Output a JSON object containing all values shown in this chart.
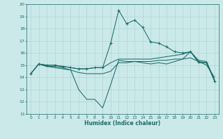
{
  "xlabel": "Humidex (Indice chaleur)",
  "xlim": [
    -0.5,
    23.5
  ],
  "ylim": [
    11,
    20
  ],
  "xticks": [
    0,
    1,
    2,
    3,
    4,
    5,
    6,
    7,
    8,
    9,
    10,
    11,
    12,
    13,
    14,
    15,
    16,
    17,
    18,
    19,
    20,
    21,
    22,
    23
  ],
  "yticks": [
    11,
    12,
    13,
    14,
    15,
    16,
    17,
    18,
    19,
    20
  ],
  "background_color": "#cce9ea",
  "grid_color": "#aed4d5",
  "line_color": "#1c6b6a",
  "series": [
    {
      "x": [
        0,
        1,
        2,
        3,
        4,
        5,
        6,
        7,
        8,
        9,
        10,
        11,
        12,
        13,
        14,
        15,
        16,
        17,
        18,
        19,
        20,
        21,
        22,
        23
      ],
      "y": [
        14.3,
        15.1,
        14.9,
        14.9,
        14.8,
        14.6,
        13.0,
        12.2,
        12.2,
        11.5,
        13.4,
        15.4,
        15.3,
        15.3,
        15.2,
        15.1,
        15.2,
        15.1,
        15.3,
        15.5,
        16.1,
        15.2,
        15.2,
        13.7
      ],
      "marker": false
    },
    {
      "x": [
        0,
        1,
        2,
        3,
        4,
        5,
        6,
        7,
        8,
        9,
        10,
        11,
        12,
        13,
        14,
        15,
        16,
        17,
        18,
        19,
        20,
        21,
        22,
        23
      ],
      "y": [
        14.3,
        15.1,
        15.0,
        15.0,
        14.9,
        14.8,
        14.7,
        14.7,
        14.8,
        14.8,
        15.2,
        15.5,
        15.5,
        15.5,
        15.5,
        15.5,
        15.6,
        15.7,
        15.8,
        15.9,
        16.1,
        15.4,
        15.3,
        13.8
      ],
      "marker": false
    },
    {
      "x": [
        0,
        1,
        2,
        3,
        4,
        5,
        6,
        7,
        8,
        9,
        10,
        11,
        12,
        13,
        14,
        15,
        16,
        17,
        18,
        19,
        20,
        21,
        22,
        23
      ],
      "y": [
        14.3,
        15.1,
        15.0,
        15.0,
        14.9,
        14.8,
        14.7,
        14.7,
        14.8,
        14.8,
        16.8,
        19.5,
        18.4,
        18.7,
        18.1,
        16.9,
        16.8,
        16.5,
        16.1,
        16.0,
        16.1,
        15.3,
        15.2,
        13.7
      ],
      "marker": true
    },
    {
      "x": [
        0,
        1,
        2,
        3,
        4,
        5,
        6,
        7,
        8,
        9,
        10,
        11,
        12,
        13,
        14,
        15,
        16,
        17,
        18,
        19,
        20,
        21,
        22,
        23
      ],
      "y": [
        14.3,
        15.1,
        14.9,
        14.8,
        14.7,
        14.6,
        14.4,
        14.3,
        14.3,
        14.3,
        14.5,
        15.2,
        15.2,
        15.3,
        15.3,
        15.3,
        15.4,
        15.4,
        15.5,
        15.5,
        15.6,
        15.3,
        15.0,
        14.0
      ],
      "marker": false
    }
  ]
}
